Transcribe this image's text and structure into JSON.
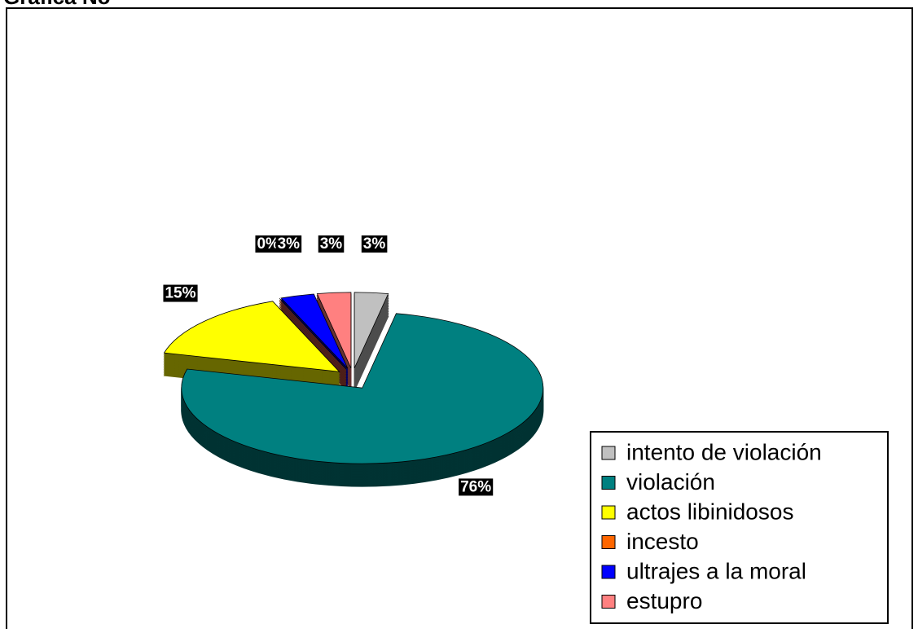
{
  "chart_data": {
    "type": "pie",
    "title": "Gráfica No",
    "categories": [
      "intento de violación",
      "violación",
      "actos libinidosos",
      "incesto",
      "ultrajes a la moral",
      "estupro"
    ],
    "values": [
      3,
      76,
      15,
      0,
      3,
      3
    ],
    "value_labels": [
      "3%",
      "76%",
      "15%",
      "0%",
      "3%",
      "3%"
    ],
    "colors": [
      "#c0c0c0",
      "#008080",
      "#ffff00",
      "#ff6600",
      "#0000ff",
      "#ff8080"
    ],
    "legend": "bottom-right"
  }
}
